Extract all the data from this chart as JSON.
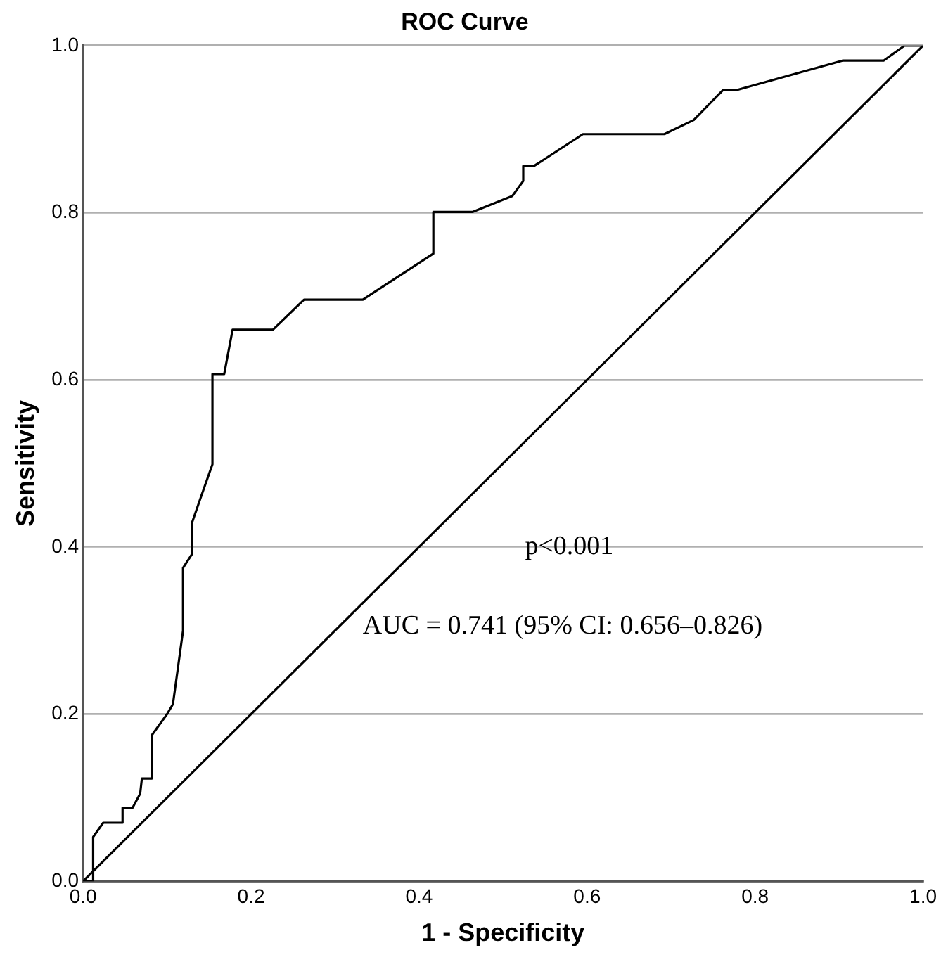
{
  "chart_data": {
    "type": "line",
    "title": "ROC Curve",
    "xlabel": "1 - Specificity",
    "ylabel": "Sensitivity",
    "series": [
      {
        "color": "#000000",
        "x": [
          0,
          0.012,
          0.012,
          0.024,
          0.047,
          0.047,
          0.059,
          0.068,
          0.07,
          0.082,
          0.082,
          0.1,
          0.107,
          0.119,
          0.119,
          0.13,
          0.13,
          0.14,
          0.154,
          0.154,
          0.168,
          0.178,
          0.226,
          0.263,
          0.333,
          0.417,
          0.417,
          0.464,
          0.511,
          0.524,
          0.524,
          0.537,
          0.595,
          0.692,
          0.727,
          0.762,
          0.779,
          0.904,
          0.953,
          0.978,
          1
        ],
        "values": [
          0,
          0,
          0.053,
          0.07,
          0.07,
          0.088,
          0.088,
          0.105,
          0.123,
          0.123,
          0.175,
          0.2,
          0.212,
          0.3,
          0.375,
          0.392,
          0.43,
          0.459,
          0.499,
          0.607,
          0.607,
          0.66,
          0.66,
          0.696,
          0.696,
          0.751,
          0.801,
          0.801,
          0.82,
          0.838,
          0.856,
          0.856,
          0.894,
          0.894,
          0.911,
          0.947,
          0.947,
          0.982,
          0.982,
          1,
          1
        ]
      },
      {
        "color": "#000000",
        "x": [
          0,
          1
        ],
        "values": [
          0,
          1
        ]
      }
    ],
    "xlim": [
      0,
      1
    ],
    "xticks": [
      {
        "value": 0,
        "label": "0.0"
      },
      {
        "value": 0.2,
        "label": "0.2"
      },
      {
        "value": 0.4,
        "label": "0.4"
      },
      {
        "value": 0.6,
        "label": "0.6"
      },
      {
        "value": 0.8,
        "label": "0.8"
      },
      {
        "value": 1,
        "label": "1.0"
      }
    ],
    "ylim": [
      0,
      1
    ],
    "yticks": [
      {
        "value": 0,
        "label": "0.0"
      },
      {
        "value": 0.2,
        "label": "0.2"
      },
      {
        "value": 0.4,
        "label": "0.4"
      },
      {
        "value": 0.6,
        "label": "0.6"
      },
      {
        "value": 0.8,
        "label": "0.8"
      },
      {
        "value": 1,
        "label": "1.0"
      }
    ],
    "grid": "y",
    "legend": false,
    "marker": "none",
    "line_style": "solid",
    "annotations": [
      "p<0.001",
      "AUC = 0.741 (95% CI: 0.656–0.826)"
    ]
  }
}
